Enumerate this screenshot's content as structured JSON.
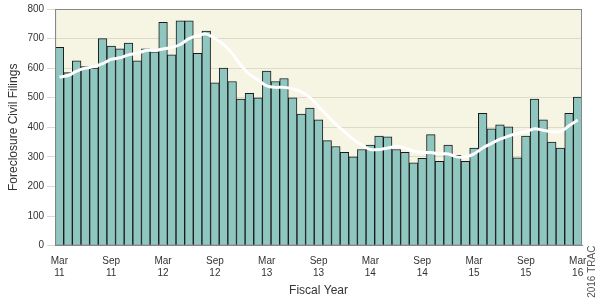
{
  "chart_data": {
    "type": "bar",
    "x_label": "Fiscal Year",
    "y_label": "Foreclosure Civil Filings",
    "annotations": [
      "© 2016 TRAC"
    ],
    "categories": [
      "Mar 11",
      null,
      null,
      null,
      null,
      null,
      "Sep 11",
      null,
      null,
      null,
      null,
      null,
      "Mar 12",
      null,
      null,
      null,
      null,
      null,
      "Sep 12",
      null,
      null,
      null,
      null,
      null,
      "Mar 13",
      null,
      null,
      null,
      null,
      null,
      "Sep 13",
      null,
      null,
      null,
      null,
      null,
      "Mar 14",
      null,
      null,
      null,
      null,
      null,
      "Sep 14",
      null,
      null,
      null,
      null,
      null,
      "Mar 15",
      null,
      null,
      null,
      null,
      null,
      "Sep 15",
      null,
      null,
      null,
      null,
      null,
      "Mar 16"
    ],
    "series": [
      {
        "type": "bar",
        "color": "#8fc7c0",
        "values": [
          670,
          585,
          625,
          605,
          600,
          700,
          675,
          665,
          685,
          625,
          665,
          655,
          755,
          645,
          760,
          760,
          650,
          725,
          550,
          600,
          555,
          495,
          515,
          500,
          590,
          555,
          565,
          500,
          445,
          465,
          425,
          355,
          335,
          315,
          300,
          325,
          340,
          370,
          368,
          325,
          315,
          280,
          295,
          375,
          285,
          340,
          305,
          285,
          330,
          447,
          395,
          408,
          402,
          297,
          370,
          495,
          425,
          350,
          330,
          447,
          502
        ]
      },
      {
        "type": "line",
        "color": "#ffffff",
        "values": [
          570,
          575,
          590,
          600,
          605,
          615,
          630,
          635,
          645,
          650,
          660,
          660,
          665,
          670,
          680,
          700,
          710,
          715,
          700,
          680,
          650,
          610,
          580,
          560,
          540,
          535,
          535,
          530,
          520,
          500,
          470,
          440,
          410,
          385,
          360,
          340,
          325,
          325,
          330,
          335,
          330,
          320,
          315,
          315,
          310,
          310,
          300,
          300,
          310,
          330,
          345,
          360,
          370,
          380,
          385,
          395,
          390,
          385,
          385,
          405,
          425
        ]
      }
    ],
    "ylim": [
      0,
      800
    ],
    "yticks": [
      0,
      100,
      200,
      300,
      400,
      500,
      600,
      700,
      800
    ],
    "grid": true
  }
}
